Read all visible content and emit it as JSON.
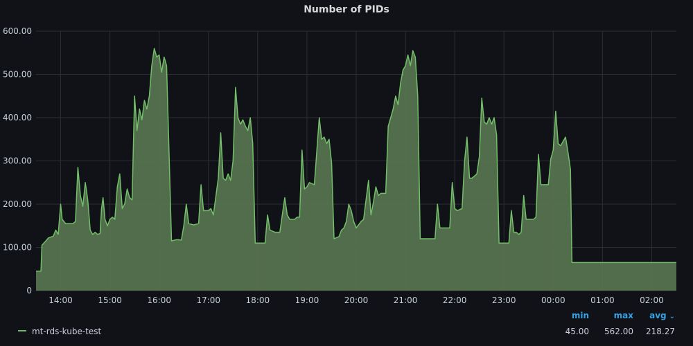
{
  "panel": {
    "title": "Number of PIDs"
  },
  "colors": {
    "background": "#111217",
    "series": "#73bf69",
    "fill": "#56734f",
    "accent": "#33a2e5",
    "grid": "#2c2d33"
  },
  "legend": {
    "series_name": "mt-rds-kube-test",
    "headers": {
      "min": "min",
      "max": "max",
      "avg": "avg"
    },
    "values": {
      "min": "45.00",
      "max": "562.00",
      "avg": "218.27"
    },
    "sort_icon": "chevron-down-icon"
  },
  "chart_data": {
    "type": "area",
    "title": "Number of PIDs",
    "xlabel": "",
    "ylabel": "",
    "ylim": [
      0,
      600
    ],
    "yticks": [
      "0",
      "100.00",
      "200.00",
      "300.00",
      "400.00",
      "500.00",
      "600.00"
    ],
    "xticks": [
      "14:00",
      "15:00",
      "16:00",
      "17:00",
      "18:00",
      "19:00",
      "20:00",
      "21:00",
      "22:00",
      "23:00",
      "00:00",
      "01:00",
      "02:00"
    ],
    "xrange_hours": [
      13.5,
      26.5
    ],
    "grid": true,
    "legend_position": "bottom-left",
    "series": [
      {
        "name": "mt-rds-kube-test",
        "points": [
          [
            13.5,
            45
          ],
          [
            13.6,
            45
          ],
          [
            13.62,
            105
          ],
          [
            13.7,
            115
          ],
          [
            13.75,
            122
          ],
          [
            13.85,
            126
          ],
          [
            13.9,
            140
          ],
          [
            13.95,
            130
          ],
          [
            14.0,
            200
          ],
          [
            14.03,
            165
          ],
          [
            14.1,
            155
          ],
          [
            14.25,
            155
          ],
          [
            14.3,
            160
          ],
          [
            14.35,
            285
          ],
          [
            14.4,
            220
          ],
          [
            14.45,
            195
          ],
          [
            14.5,
            250
          ],
          [
            14.55,
            210
          ],
          [
            14.6,
            140
          ],
          [
            14.65,
            130
          ],
          [
            14.7,
            135
          ],
          [
            14.75,
            130
          ],
          [
            14.8,
            132
          ],
          [
            14.83,
            190
          ],
          [
            14.86,
            215
          ],
          [
            14.9,
            165
          ],
          [
            14.95,
            150
          ],
          [
            15.0,
            165
          ],
          [
            15.05,
            170
          ],
          [
            15.1,
            165
          ],
          [
            15.15,
            240
          ],
          [
            15.2,
            270
          ],
          [
            15.25,
            190
          ],
          [
            15.3,
            200
          ],
          [
            15.35,
            235
          ],
          [
            15.4,
            215
          ],
          [
            15.45,
            210
          ],
          [
            15.5,
            450
          ],
          [
            15.55,
            370
          ],
          [
            15.6,
            420
          ],
          [
            15.65,
            395
          ],
          [
            15.7,
            440
          ],
          [
            15.75,
            420
          ],
          [
            15.8,
            450
          ],
          [
            15.85,
            520
          ],
          [
            15.9,
            560
          ],
          [
            15.95,
            540
          ],
          [
            16.0,
            545
          ],
          [
            16.05,
            505
          ],
          [
            16.1,
            540
          ],
          [
            16.15,
            520
          ],
          [
            16.25,
            115
          ],
          [
            16.35,
            118
          ],
          [
            16.45,
            117
          ],
          [
            16.5,
            150
          ],
          [
            16.55,
            200
          ],
          [
            16.6,
            155
          ],
          [
            16.7,
            152
          ],
          [
            16.8,
            155
          ],
          [
            16.85,
            245
          ],
          [
            16.9,
            185
          ],
          [
            17.0,
            185
          ],
          [
            17.05,
            190
          ],
          [
            17.1,
            175
          ],
          [
            17.2,
            260
          ],
          [
            17.25,
            365
          ],
          [
            17.3,
            260
          ],
          [
            17.35,
            255
          ],
          [
            17.4,
            270
          ],
          [
            17.45,
            255
          ],
          [
            17.5,
            300
          ],
          [
            17.55,
            470
          ],
          [
            17.6,
            400
          ],
          [
            17.65,
            385
          ],
          [
            17.7,
            395
          ],
          [
            17.75,
            380
          ],
          [
            17.8,
            370
          ],
          [
            17.85,
            400
          ],
          [
            17.9,
            340
          ],
          [
            17.95,
            110
          ],
          [
            18.05,
            110
          ],
          [
            18.15,
            110
          ],
          [
            18.2,
            175
          ],
          [
            18.25,
            140
          ],
          [
            18.35,
            135
          ],
          [
            18.45,
            135
          ],
          [
            18.55,
            215
          ],
          [
            18.6,
            175
          ],
          [
            18.65,
            165
          ],
          [
            18.75,
            165
          ],
          [
            18.8,
            170
          ],
          [
            18.85,
            170
          ],
          [
            18.9,
            325
          ],
          [
            18.95,
            235
          ],
          [
            19.0,
            240
          ],
          [
            19.05,
            250
          ],
          [
            19.15,
            245
          ],
          [
            19.25,
            400
          ],
          [
            19.3,
            350
          ],
          [
            19.35,
            355
          ],
          [
            19.4,
            340
          ],
          [
            19.45,
            350
          ],
          [
            19.5,
            295
          ],
          [
            19.55,
            120
          ],
          [
            19.65,
            125
          ],
          [
            19.7,
            140
          ],
          [
            19.75,
            145
          ],
          [
            19.8,
            160
          ],
          [
            19.85,
            200
          ],
          [
            19.9,
            185
          ],
          [
            19.95,
            160
          ],
          [
            20.0,
            145
          ],
          [
            20.1,
            160
          ],
          [
            20.15,
            165
          ],
          [
            20.2,
            210
          ],
          [
            20.25,
            255
          ],
          [
            20.3,
            175
          ],
          [
            20.35,
            205
          ],
          [
            20.4,
            240
          ],
          [
            20.45,
            220
          ],
          [
            20.5,
            225
          ],
          [
            20.6,
            225
          ],
          [
            20.65,
            380
          ],
          [
            20.7,
            400
          ],
          [
            20.75,
            420
          ],
          [
            20.8,
            450
          ],
          [
            20.85,
            430
          ],
          [
            20.9,
            480
          ],
          [
            20.95,
            510
          ],
          [
            21.0,
            520
          ],
          [
            21.05,
            545
          ],
          [
            21.1,
            520
          ],
          [
            21.15,
            555
          ],
          [
            21.2,
            540
          ],
          [
            21.25,
            450
          ],
          [
            21.3,
            120
          ],
          [
            21.4,
            120
          ],
          [
            21.5,
            120
          ],
          [
            21.6,
            120
          ],
          [
            21.65,
            200
          ],
          [
            21.7,
            145
          ],
          [
            21.8,
            145
          ],
          [
            21.9,
            145
          ],
          [
            21.95,
            250
          ],
          [
            22.0,
            190
          ],
          [
            22.05,
            185
          ],
          [
            22.15,
            190
          ],
          [
            22.2,
            300
          ],
          [
            22.25,
            355
          ],
          [
            22.3,
            260
          ],
          [
            22.35,
            260
          ],
          [
            22.4,
            265
          ],
          [
            22.45,
            270
          ],
          [
            22.5,
            310
          ],
          [
            22.55,
            445
          ],
          [
            22.6,
            390
          ],
          [
            22.65,
            385
          ],
          [
            22.7,
            400
          ],
          [
            22.75,
            385
          ],
          [
            22.8,
            400
          ],
          [
            22.85,
            360
          ],
          [
            22.9,
            110
          ],
          [
            23.0,
            110
          ],
          [
            23.1,
            110
          ],
          [
            23.15,
            185
          ],
          [
            23.2,
            135
          ],
          [
            23.25,
            135
          ],
          [
            23.3,
            130
          ],
          [
            23.35,
            135
          ],
          [
            23.4,
            220
          ],
          [
            23.45,
            165
          ],
          [
            23.5,
            165
          ],
          [
            23.6,
            165
          ],
          [
            23.65,
            170
          ],
          [
            23.7,
            315
          ],
          [
            23.75,
            245
          ],
          [
            23.8,
            245
          ],
          [
            23.9,
            245
          ],
          [
            23.95,
            305
          ],
          [
            24.0,
            325
          ],
          [
            24.05,
            415
          ],
          [
            24.1,
            340
          ],
          [
            24.15,
            335
          ],
          [
            24.2,
            345
          ],
          [
            24.25,
            355
          ],
          [
            24.3,
            320
          ],
          [
            24.35,
            280
          ],
          [
            24.38,
            65
          ],
          [
            24.5,
            65
          ],
          [
            25.0,
            65
          ],
          [
            25.5,
            65
          ],
          [
            26.0,
            65
          ],
          [
            26.5,
            65
          ]
        ]
      }
    ]
  }
}
